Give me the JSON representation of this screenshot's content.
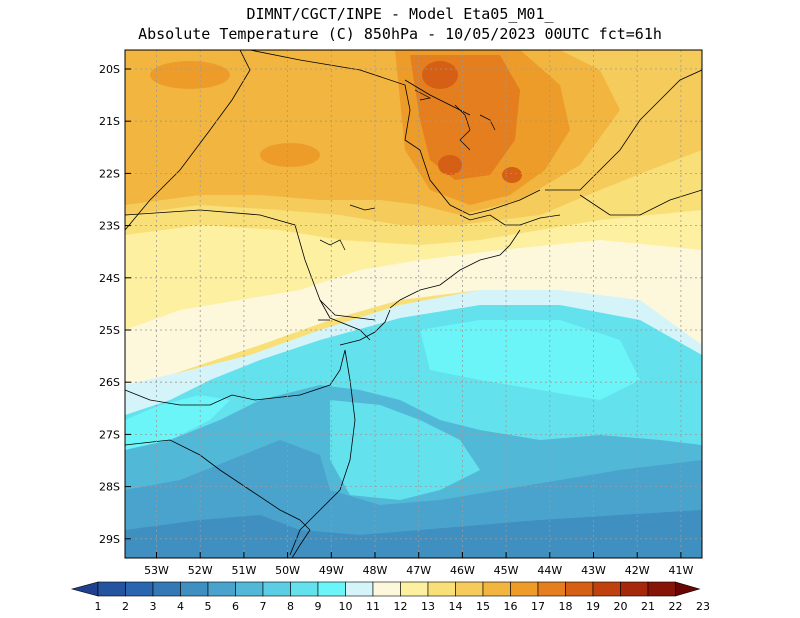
{
  "header": {
    "line1": "DIMNT/CGCT/INPE -  Model Eta05_M01_",
    "line2": "Absolute Temperature (C) 850hPa -  10/05/2023 00UTC fct=61h"
  },
  "axes": {
    "lat_labels": [
      "20S",
      "21S",
      "22S",
      "23S",
      "24S",
      "25S",
      "26S",
      "27S",
      "28S",
      "29S"
    ],
    "lon_labels": [
      "53W",
      "52W",
      "51W",
      "50W",
      "49W",
      "48W",
      "47W",
      "46W",
      "45W",
      "44W",
      "43W",
      "42W",
      "41W"
    ]
  },
  "colorbar": {
    "labels": [
      "1",
      "2",
      "3",
      "4",
      "5",
      "6",
      "7",
      "8",
      "9",
      "10",
      "11",
      "12",
      "13",
      "14",
      "15",
      "16",
      "17",
      "18",
      "19",
      "20",
      "21",
      "22",
      "23"
    ],
    "colors": [
      "#1f3f8f",
      "#2453a0",
      "#2a66b0",
      "#3479b5",
      "#3f8fc0",
      "#4aa3cc",
      "#52b8d8",
      "#5bcde4",
      "#63e2ee",
      "#6cf5f8",
      "#d4f4fa",
      "#fdf8dc",
      "#fdf0a0",
      "#f9df78",
      "#f5cc5c",
      "#f1b540",
      "#ed9c2a",
      "#e47e1e",
      "#d55f14",
      "#c1410e",
      "#a5280a",
      "#861507",
      "#690505"
    ]
  },
  "map": {
    "field_palette": {
      "deep": "#3f8fc0",
      "mid": "#4aa3cc",
      "blue": "#52b8d8",
      "cyan": "#63e2ee",
      "lightcyan": "#d4f4fa",
      "cream": "#fdf8dc",
      "yellow": "#fdf0a0",
      "gold": "#f9df78",
      "orange1": "#f5cc5c",
      "orange2": "#f1b540",
      "orange3": "#ed9c2a",
      "orange4": "#e47e1e",
      "red1": "#d55f14"
    }
  }
}
